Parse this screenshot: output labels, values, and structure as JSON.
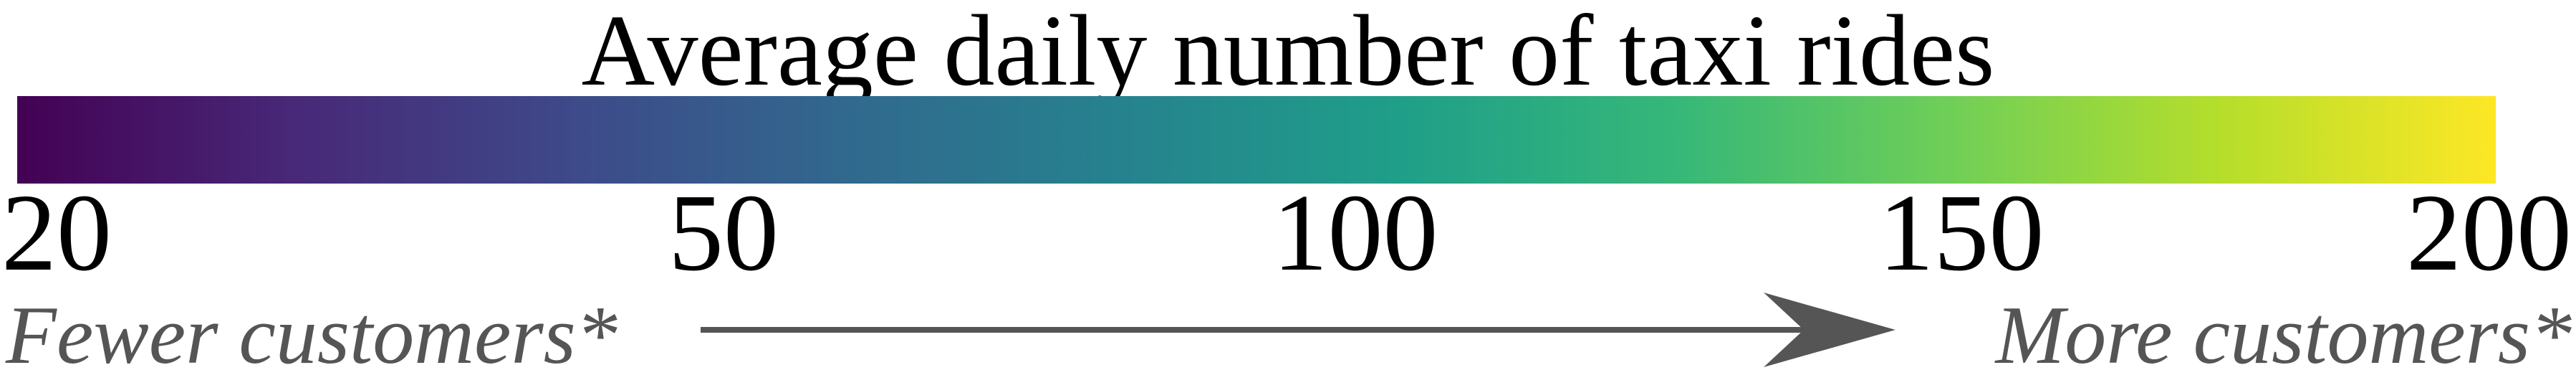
{
  "chart_data": {
    "type": "colorbar",
    "title": "Average daily number of taxi rides",
    "colormap": "viridis",
    "range": [
      20,
      200
    ],
    "ticks": [
      {
        "value": 20,
        "label": "20"
      },
      {
        "value": 50,
        "label": "50"
      },
      {
        "value": 100,
        "label": "100"
      },
      {
        "value": 150,
        "label": "150"
      },
      {
        "value": 200,
        "label": "200"
      }
    ],
    "gradient_colors": [
      "#440154",
      "#482878",
      "#3e4989",
      "#31688e",
      "#26828e",
      "#1f9e89",
      "#35b779",
      "#6ece58",
      "#b5de2b",
      "#fde725"
    ],
    "annotation": {
      "low_label": "Fewer customers*",
      "high_label": "More customers*",
      "arrow_color": "#555555"
    }
  }
}
